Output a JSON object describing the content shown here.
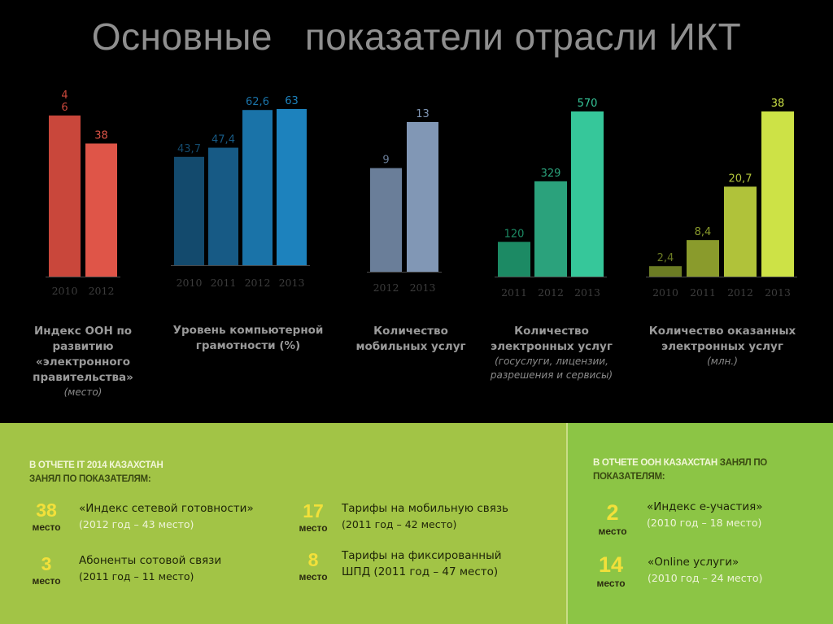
{
  "title": "Основные   показатели отрасли ИКТ",
  "chart_data": [
    {
      "type": "bar",
      "categories": [
        "2010",
        "2012"
      ],
      "values": [
        46,
        38
      ],
      "labels": [
        "4\n6",
        "38"
      ],
      "title": "Индекс ООН по развитию «электронного правительства»",
      "subtitle": "(место)",
      "colors": [
        "#c9473b",
        "#df5548"
      ]
    },
    {
      "type": "bar",
      "categories": [
        "2010",
        "2011",
        "2012",
        "2013"
      ],
      "values": [
        43.7,
        47.4,
        62.6,
        63
      ],
      "labels": [
        "43,7",
        "47,4",
        "62,6",
        "63"
      ],
      "title": "Уровень компьютерной грамотности (%)",
      "subtitle": "",
      "colors": [
        "#134a6d",
        "#175a85",
        "#1a73a8",
        "#1d82bd"
      ]
    },
    {
      "type": "bar",
      "categories": [
        "2012",
        "2013"
      ],
      "values": [
        9,
        13
      ],
      "labels": [
        "9",
        "13"
      ],
      "title": "Количество мобильных услуг",
      "subtitle": "",
      "colors": [
        "#6a7e99",
        "#8197b5"
      ]
    },
    {
      "type": "bar",
      "categories": [
        "2011",
        "2012",
        "2013"
      ],
      "values": [
        120,
        329,
        570
      ],
      "labels": [
        "120",
        "329",
        "570"
      ],
      "title": "Количество электронных услуг",
      "subtitle": "(госуслуги, лицензии, разрешения и сервисы)",
      "colors": [
        "#1c8a64",
        "#2ba27c",
        "#36c79a"
      ]
    },
    {
      "type": "bar",
      "categories": [
        "2010",
        "2011",
        "2012",
        "2013"
      ],
      "values": [
        2.4,
        8.4,
        20.7,
        38
      ],
      "labels": [
        "2,4",
        "8,4",
        "20,7",
        "38"
      ],
      "title": "Количество оказанных электронных услуг",
      "subtitle": "(млн.)",
      "colors": [
        "#6c7c24",
        "#8a9b2c",
        "#b0c23a",
        "#cde246"
      ]
    }
  ],
  "it_report": {
    "heading_highlight": "В отчете IT 2014 Казахстан",
    "heading_rest": "занял по показателям:",
    "items": [
      {
        "rank": "38",
        "word": "место",
        "title": "«Индекс сетевой готовности»",
        "sub": "(2012 год – 43 место)"
      },
      {
        "rank": "3",
        "word": "место",
        "title": "Абоненты сотовой связи",
        "sub": "(2011 год – 11 место)"
      },
      {
        "rank": "17",
        "word": "место",
        "title": "Тарифы на мобильную связь",
        "sub": "(2011 год – 42 место)"
      },
      {
        "rank": "8",
        "word": "место",
        "title": "Тарифы на фиксированный",
        "sub": "ШПД (2011 год – 47 место)"
      }
    ]
  },
  "un_report": {
    "heading_highlight": "В отчете ООН Казахстан",
    "heading_rest_1": " занял по",
    "heading_rest_2": "показателям:",
    "items": [
      {
        "rank": "2",
        "word": "место",
        "title": "«Индекс е-участия»",
        "sub": "(2010 год – 18 место)"
      },
      {
        "rank": "14",
        "word": "место",
        "title": "«Online услуги»",
        "sub": "(2010 год – 24 место)"
      }
    ]
  }
}
